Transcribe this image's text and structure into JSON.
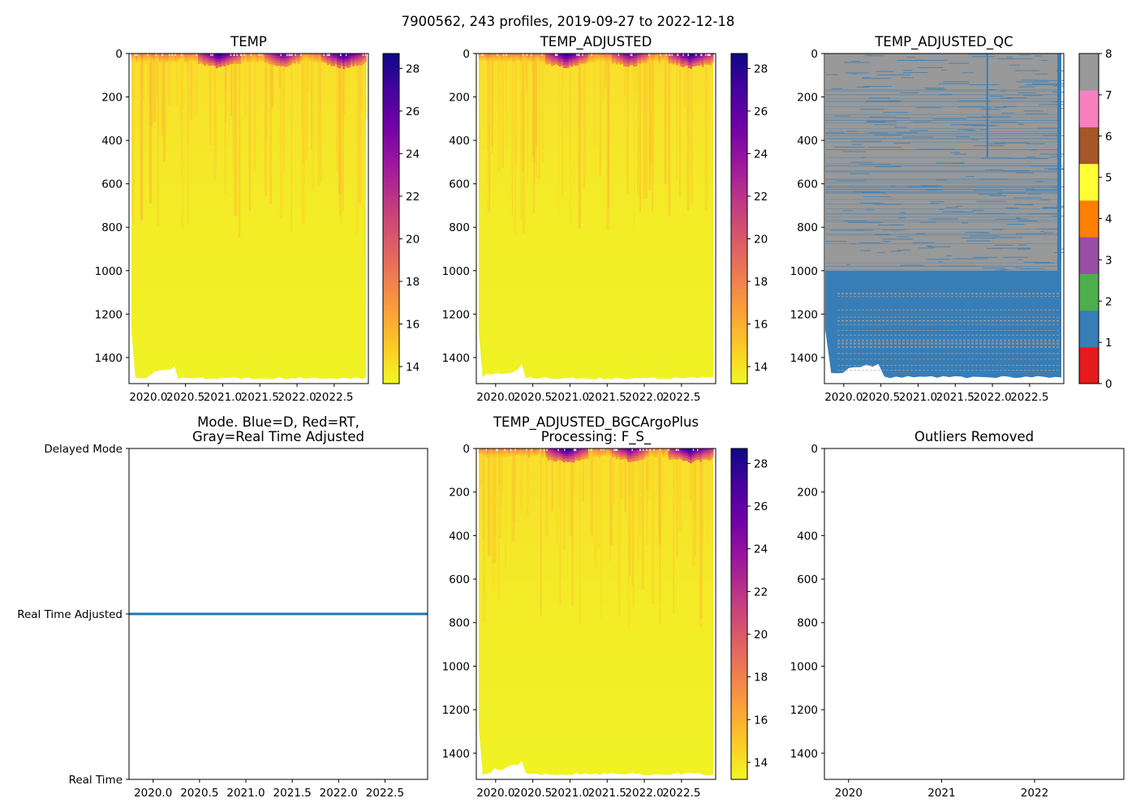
{
  "figure_title": "7900562, 243 profiles, 2019-09-27 to 2022-12-18",
  "colors": {
    "plasma": [
      "#f0f921",
      "#fdca26",
      "#fb9f3a",
      "#ed7953",
      "#d8576b",
      "#bd3786",
      "#9c179e",
      "#7201a8",
      "#46039f",
      "#0d0887"
    ],
    "qc_flags": [
      "#e41a1c",
      "#377eb8",
      "#4daf4a",
      "#984ea3",
      "#ff7f00",
      "#ffff33",
      "#a65628",
      "#f781bf",
      "#999999"
    ],
    "mode_line": "#1f77b4"
  },
  "chart_data": [
    {
      "id": "temp",
      "type": "heatmap",
      "title": "TEMP",
      "xlim": [
        2019.74,
        2022.96
      ],
      "xticks": [
        "2020.0",
        "2020.5",
        "2021.0",
        "2021.5",
        "2022.0",
        "2022.5"
      ],
      "ylim": [
        1520,
        0
      ],
      "yticks": [
        "0",
        "200",
        "400",
        "600",
        "800",
        "1000",
        "1200",
        "1400"
      ],
      "colorbar": {
        "range": [
          13.2,
          28.7
        ],
        "ticks": [
          "14",
          "16",
          "18",
          "20",
          "22",
          "24",
          "26",
          "28"
        ],
        "cmap": "plasma"
      }
    },
    {
      "id": "temp-adjusted",
      "type": "heatmap",
      "title": "TEMP_ADJUSTED",
      "xlim": [
        2019.74,
        2022.96
      ],
      "xticks": [
        "2020.0",
        "2020.5",
        "2021.0",
        "2021.5",
        "2022.0",
        "2022.5"
      ],
      "ylim": [
        1520,
        0
      ],
      "yticks": [
        "0",
        "200",
        "400",
        "600",
        "800",
        "1000",
        "1200",
        "1400"
      ],
      "colorbar": {
        "range": [
          13.2,
          28.7
        ],
        "ticks": [
          "14",
          "16",
          "18",
          "20",
          "22",
          "24",
          "26",
          "28"
        ],
        "cmap": "plasma"
      }
    },
    {
      "id": "temp-adjusted-qc",
      "type": "heatmap",
      "title": "TEMP_ADJUSTED_QC",
      "xlim": [
        2019.74,
        2022.96
      ],
      "xticks": [
        "2020.0",
        "2020.5",
        "2021.0",
        "2021.5",
        "2022.0",
        "2022.5"
      ],
      "ylim": [
        1520,
        0
      ],
      "yticks": [
        "0",
        "200",
        "400",
        "600",
        "800",
        "1000",
        "1200",
        "1400"
      ],
      "qc_split_depth": 1000,
      "colorbar": {
        "range": [
          0,
          8
        ],
        "ticks": [
          "0",
          "1",
          "2",
          "3",
          "4",
          "5",
          "6",
          "7",
          "8"
        ],
        "cmap": "qc_flags"
      }
    },
    {
      "id": "mode",
      "type": "line",
      "title_lines": [
        "Mode. Blue=D, Red=RT,",
        "Gray=Real Time Adjusted"
      ],
      "xlim": [
        2019.74,
        2022.96
      ],
      "xticks": [
        "2020.0",
        "2020.5",
        "2021.0",
        "2021.5",
        "2022.0",
        "2022.5"
      ],
      "ylim": [
        0,
        2
      ],
      "ytick_labels": [
        "Delayed Mode",
        "Real Time Adjusted",
        "Real Time"
      ],
      "series": [
        {
          "name": "mode",
          "x": [
            2019.74,
            2022.96
          ],
          "y": [
            1,
            1
          ]
        }
      ]
    },
    {
      "id": "bgc",
      "type": "heatmap",
      "title_lines": [
        "TEMP_ADJUSTED_BGCArgoPlus",
        "Processing: F_S_"
      ],
      "xlim": [
        2019.74,
        2022.96
      ],
      "xticks": [
        "2020.0",
        "2020.5",
        "2021.0",
        "2021.5",
        "2022.0",
        "2022.5"
      ],
      "ylim": [
        1520,
        0
      ],
      "yticks": [
        "0",
        "200",
        "400",
        "600",
        "800",
        "1000",
        "1200",
        "1400"
      ],
      "colorbar": {
        "range": [
          13.2,
          28.7
        ],
        "ticks": [
          "14",
          "16",
          "18",
          "20",
          "22",
          "24",
          "26",
          "28"
        ],
        "cmap": "plasma"
      }
    },
    {
      "id": "outliers",
      "type": "scatter",
      "title": "Outliers Removed",
      "xlim": [
        2019.74,
        2022.96
      ],
      "xticks": [
        "2020",
        "2021",
        "2022"
      ],
      "ylim": [
        1520,
        0
      ],
      "yticks": [
        "0",
        "200",
        "400",
        "600",
        "800",
        "1000",
        "1200",
        "1400"
      ],
      "series": []
    }
  ]
}
